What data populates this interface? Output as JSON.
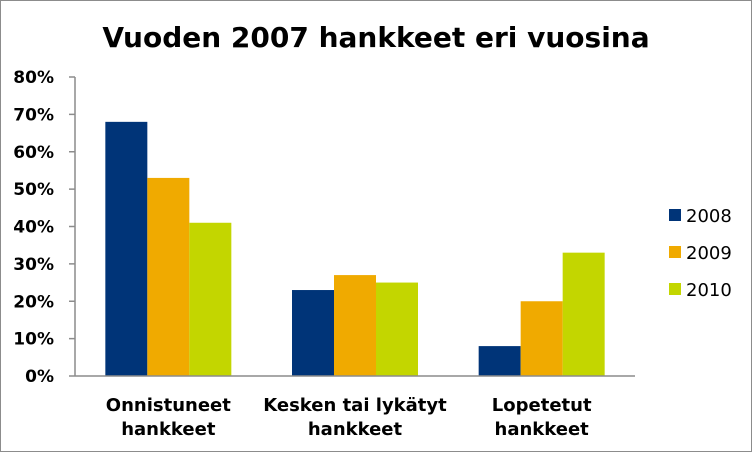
{
  "chart_data": {
    "type": "bar",
    "title": "Vuoden 2007 hankkeet eri vuosina",
    "categories": [
      [
        "Onnistuneet",
        "hankkeet"
      ],
      [
        "Kesken tai lykätyt",
        "hankkeet"
      ],
      [
        "Lopetetut",
        "hankkeet"
      ]
    ],
    "series": [
      {
        "name": "2008",
        "color": "#003478",
        "values": [
          68,
          23,
          8
        ]
      },
      {
        "name": "2009",
        "color": "#f0aa00",
        "values": [
          53,
          27,
          20
        ]
      },
      {
        "name": "2010",
        "color": "#c3d600",
        "values": [
          41,
          25,
          33
        ]
      }
    ],
    "yticks": [
      "0%",
      "10%",
      "20%",
      "30%",
      "40%",
      "50%",
      "60%",
      "70%",
      "80%"
    ],
    "ylim": [
      0,
      80
    ],
    "grid": false,
    "legend_position": "right"
  }
}
